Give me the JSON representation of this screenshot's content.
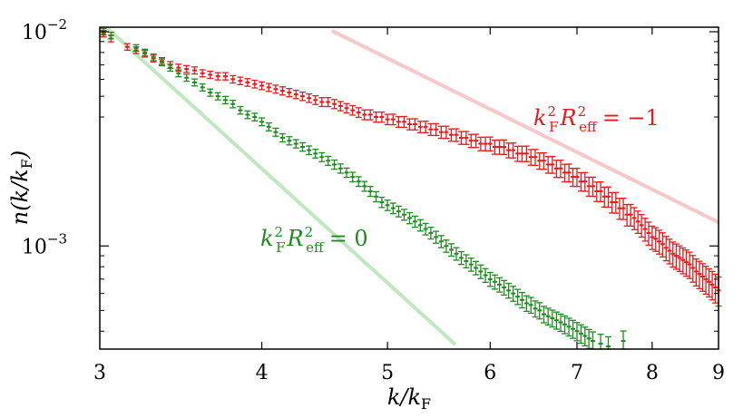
{
  "chart_data": {
    "type": "scatter",
    "xlabel": "k/k_F",
    "ylabel": "n(k/k_F)",
    "x_scale": "log",
    "y_scale": "log",
    "xlim": [
      3,
      9
    ],
    "ylim": [
      0.00033,
      0.0105
    ],
    "x_ticks": [
      "3",
      "4",
      "5",
      "6",
      "7",
      "8",
      "9"
    ],
    "y_ticks": [
      {
        "value": 0.01,
        "label": "10",
        "exp": "−2"
      },
      {
        "value": 0.001,
        "label": "10",
        "exp": "−3"
      }
    ],
    "annotations": [
      {
        "text": "k_F^2 R_eff^2 = −1",
        "color": "#e8191a"
      },
      {
        "text": "k_F^2 R_eff^2 = 0",
        "color": "#1f8a1f"
      }
    ],
    "series": [
      {
        "color": "#e8191a",
        "marker": "errorbar",
        "fit": {
          "power": -3,
          "coefficient": 0.94,
          "color": "#f7c8c8"
        },
        "points": [
          [
            3.02,
            0.0098
          ],
          [
            3.06,
            0.0093
          ],
          [
            3.15,
            0.0085
          ],
          [
            3.2,
            0.0082
          ],
          [
            3.25,
            0.0079
          ],
          [
            3.3,
            0.0075
          ],
          [
            3.35,
            0.0073
          ],
          [
            3.4,
            0.007
          ],
          [
            3.45,
            0.0068
          ],
          [
            3.5,
            0.0067
          ],
          [
            3.55,
            0.0066
          ],
          [
            3.6,
            0.0064
          ],
          [
            3.65,
            0.0063
          ],
          [
            3.7,
            0.0062
          ],
          [
            3.75,
            0.0062
          ],
          [
            3.8,
            0.006
          ],
          [
            3.85,
            0.0059
          ],
          [
            3.9,
            0.0058
          ],
          [
            3.95,
            0.0057
          ],
          [
            4.0,
            0.0056
          ],
          [
            4.05,
            0.0055
          ],
          [
            4.1,
            0.0054
          ],
          [
            4.15,
            0.0053
          ],
          [
            4.2,
            0.0052
          ],
          [
            4.25,
            0.0051
          ],
          [
            4.3,
            0.005
          ],
          [
            4.35,
            0.0049
          ],
          [
            4.4,
            0.0048
          ],
          [
            4.45,
            0.0047
          ],
          [
            4.5,
            0.0047
          ],
          [
            4.55,
            0.0046
          ],
          [
            4.6,
            0.0045
          ],
          [
            4.65,
            0.0044
          ],
          [
            4.7,
            0.0043
          ],
          [
            4.75,
            0.0042
          ],
          [
            4.8,
            0.0041
          ],
          [
            4.85,
            0.0041
          ],
          [
            4.9,
            0.004
          ],
          [
            4.95,
            0.004
          ],
          [
            5.0,
            0.0039
          ],
          [
            5.05,
            0.0039
          ],
          [
            5.1,
            0.0038
          ],
          [
            5.15,
            0.0038
          ],
          [
            5.2,
            0.0037
          ],
          [
            5.25,
            0.0037
          ],
          [
            5.3,
            0.0036
          ],
          [
            5.35,
            0.0036
          ],
          [
            5.4,
            0.0035
          ],
          [
            5.45,
            0.0035
          ],
          [
            5.5,
            0.0034
          ],
          [
            5.55,
            0.0034
          ],
          [
            5.6,
            0.0033
          ],
          [
            5.65,
            0.0033
          ],
          [
            5.7,
            0.0032
          ],
          [
            5.75,
            0.0032
          ],
          [
            5.8,
            0.0031
          ],
          [
            5.85,
            0.0031
          ],
          [
            5.9,
            0.003
          ],
          [
            5.95,
            0.003
          ],
          [
            6.0,
            0.003
          ],
          [
            6.05,
            0.0029
          ],
          [
            6.1,
            0.0029
          ],
          [
            6.15,
            0.0029
          ],
          [
            6.2,
            0.0028
          ],
          [
            6.25,
            0.0028
          ],
          [
            6.3,
            0.0027
          ],
          [
            6.35,
            0.0027
          ],
          [
            6.4,
            0.0027
          ],
          [
            6.45,
            0.0026
          ],
          [
            6.5,
            0.0026
          ],
          [
            6.55,
            0.0025
          ],
          [
            6.6,
            0.0025
          ],
          [
            6.65,
            0.0024
          ],
          [
            6.7,
            0.0024
          ],
          [
            6.75,
            0.0023
          ],
          [
            6.8,
            0.0023
          ],
          [
            6.85,
            0.0022
          ],
          [
            6.9,
            0.0022
          ],
          [
            6.95,
            0.0021
          ],
          [
            7.0,
            0.0021
          ],
          [
            7.05,
            0.002
          ],
          [
            7.1,
            0.002
          ],
          [
            7.15,
            0.0019
          ],
          [
            7.2,
            0.0019
          ],
          [
            7.25,
            0.0018
          ],
          [
            7.3,
            0.0018
          ],
          [
            7.35,
            0.0017
          ],
          [
            7.4,
            0.0017
          ],
          [
            7.45,
            0.0016
          ],
          [
            7.5,
            0.0016
          ],
          [
            7.55,
            0.0015
          ],
          [
            7.6,
            0.0015
          ],
          [
            7.65,
            0.0014
          ],
          [
            7.7,
            0.0014
          ],
          [
            7.75,
            0.00135
          ],
          [
            7.8,
            0.0013
          ],
          [
            7.85,
            0.00125
          ],
          [
            7.9,
            0.0012
          ],
          [
            7.95,
            0.00115
          ],
          [
            8.0,
            0.0011
          ],
          [
            8.05,
            0.00108
          ],
          [
            8.1,
            0.00105
          ],
          [
            8.15,
            0.00102
          ],
          [
            8.2,
            0.00098
          ],
          [
            8.25,
            0.00095
          ],
          [
            8.3,
            0.00092
          ],
          [
            8.35,
            0.0009
          ],
          [
            8.4,
            0.00088
          ],
          [
            8.45,
            0.00086
          ],
          [
            8.5,
            0.00084
          ],
          [
            8.55,
            0.00082
          ],
          [
            8.6,
            0.00079
          ],
          [
            8.65,
            0.00076
          ],
          [
            8.7,
            0.00074
          ],
          [
            8.75,
            0.00072
          ],
          [
            8.8,
            0.0007
          ],
          [
            8.85,
            0.00068
          ],
          [
            8.9,
            0.00066
          ],
          [
            8.95,
            0.00064
          ],
          [
            9.0,
            0.00062
          ]
        ]
      },
      {
        "color": "#1f8a1f",
        "marker": "errorbar",
        "fit": {
          "power": -5.5,
          "coefficient": 4.7,
          "color": "#bfe8bf"
        },
        "points": [
          [
            3.02,
            0.01
          ],
          [
            3.06,
            0.0096
          ],
          [
            3.2,
            0.0084
          ],
          [
            3.25,
            0.008
          ],
          [
            3.3,
            0.0076
          ],
          [
            3.35,
            0.0072
          ],
          [
            3.4,
            0.0068
          ],
          [
            3.45,
            0.0064
          ],
          [
            3.5,
            0.0061
          ],
          [
            3.55,
            0.0058
          ],
          [
            3.6,
            0.0055
          ],
          [
            3.65,
            0.0052
          ],
          [
            3.7,
            0.005
          ],
          [
            3.75,
            0.0048
          ],
          [
            3.8,
            0.0046
          ],
          [
            3.85,
            0.0043
          ],
          [
            3.9,
            0.0041
          ],
          [
            3.95,
            0.004
          ],
          [
            4.0,
            0.0038
          ],
          [
            4.05,
            0.0036
          ],
          [
            4.1,
            0.0034
          ],
          [
            4.15,
            0.0032
          ],
          [
            4.2,
            0.0031
          ],
          [
            4.25,
            0.003
          ],
          [
            4.3,
            0.0029
          ],
          [
            4.35,
            0.0028
          ],
          [
            4.4,
            0.0027
          ],
          [
            4.45,
            0.0026
          ],
          [
            4.5,
            0.0025
          ],
          [
            4.55,
            0.0024
          ],
          [
            4.6,
            0.0023
          ],
          [
            4.65,
            0.0022
          ],
          [
            4.7,
            0.0021
          ],
          [
            4.75,
            0.002
          ],
          [
            4.8,
            0.0019
          ],
          [
            4.85,
            0.0018
          ],
          [
            4.9,
            0.0017
          ],
          [
            4.95,
            0.0016
          ],
          [
            5.0,
            0.00155
          ],
          [
            5.05,
            0.0015
          ],
          [
            5.1,
            0.00145
          ],
          [
            5.15,
            0.0014
          ],
          [
            5.2,
            0.00135
          ],
          [
            5.25,
            0.0013
          ],
          [
            5.3,
            0.00125
          ],
          [
            5.35,
            0.0012
          ],
          [
            5.4,
            0.00115
          ],
          [
            5.45,
            0.0011
          ],
          [
            5.5,
            0.00105
          ],
          [
            5.55,
            0.001
          ],
          [
            5.6,
            0.00096
          ],
          [
            5.65,
            0.00092
          ],
          [
            5.7,
            0.00088
          ],
          [
            5.75,
            0.00085
          ],
          [
            5.8,
            0.00082
          ],
          [
            5.85,
            0.00079
          ],
          [
            5.9,
            0.00076
          ],
          [
            5.95,
            0.00073
          ],
          [
            6.0,
            0.0007
          ],
          [
            6.05,
            0.00068
          ],
          [
            6.1,
            0.00066
          ],
          [
            6.15,
            0.00064
          ],
          [
            6.2,
            0.00062
          ],
          [
            6.25,
            0.0006
          ],
          [
            6.3,
            0.00058
          ],
          [
            6.35,
            0.00056
          ],
          [
            6.4,
            0.00054
          ],
          [
            6.45,
            0.00053
          ],
          [
            6.5,
            0.00051
          ],
          [
            6.55,
            0.0005
          ],
          [
            6.6,
            0.00048
          ],
          [
            6.65,
            0.00047
          ],
          [
            6.7,
            0.00046
          ],
          [
            6.75,
            0.00045
          ],
          [
            6.8,
            0.00044
          ],
          [
            6.85,
            0.00043
          ],
          [
            6.9,
            0.00042
          ],
          [
            6.95,
            0.00041
          ],
          [
            7.0,
            0.0004
          ],
          [
            7.05,
            0.00039
          ],
          [
            7.1,
            0.00038
          ],
          [
            7.15,
            0.00037
          ],
          [
            7.2,
            0.00036
          ],
          [
            7.3,
            0.00035
          ],
          [
            7.4,
            0.00034
          ],
          [
            7.6,
            0.00036
          ]
        ]
      }
    ]
  }
}
